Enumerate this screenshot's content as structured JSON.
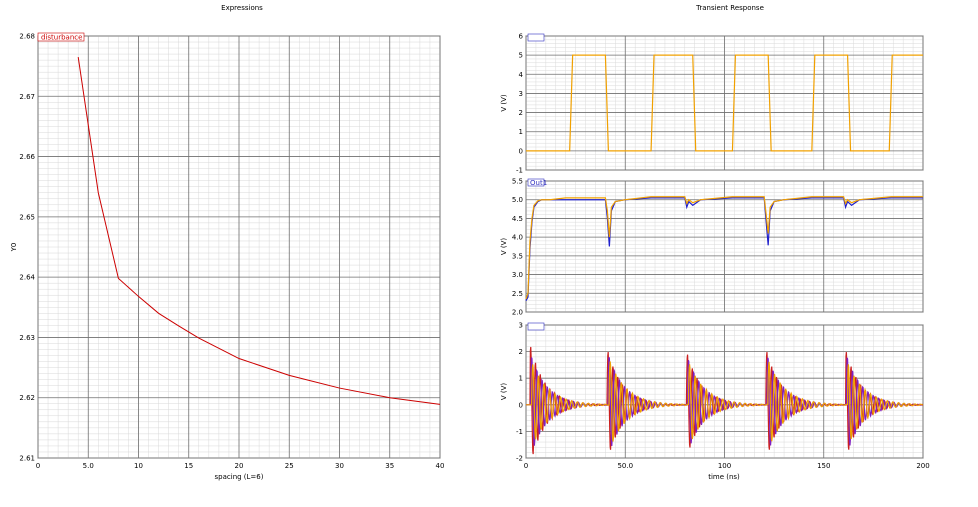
{
  "chart_data": [
    {
      "type": "line",
      "title": "Expressions",
      "xlabel": "spacing (L=6)",
      "ylabel": "Y0",
      "xlim": [
        0,
        40
      ],
      "ylim": [
        2.61,
        2.68
      ],
      "xticks": [
        0,
        5,
        10,
        15,
        20,
        25,
        30,
        35,
        40
      ],
      "xtick_labels": [
        "0",
        "5.0",
        "10",
        "15",
        "20",
        "25",
        "30",
        "35",
        "40"
      ],
      "yticks": [
        2.61,
        2.62,
        2.63,
        2.64,
        2.65,
        2.66,
        2.67,
        2.68
      ],
      "ytick_labels": [
        "2.61",
        "2.62",
        "2.63",
        "2.64",
        "2.65",
        "2.66",
        "2.67",
        "2.68"
      ],
      "grid": true,
      "legend": "top-left",
      "series": [
        {
          "name": "disturbance",
          "color": "#cc0000",
          "x": [
            4,
            6,
            8,
            10,
            12,
            14,
            16,
            20,
            25,
            30,
            35,
            40
          ],
          "y": [
            2.6765,
            2.654,
            2.6398,
            2.6368,
            2.634,
            2.6319,
            2.6299,
            2.6265,
            2.6237,
            2.6216,
            2.62,
            2.6189
          ]
        }
      ]
    },
    {
      "type": "line",
      "title": "Transient Response",
      "panels": [
        {
          "legend_label": "",
          "ylabel": "V (V)",
          "ylim": [
            -1,
            6
          ],
          "yticks": [
            -1,
            0,
            1,
            2,
            3,
            4,
            5,
            6
          ],
          "ytick_labels": [
            "-1",
            "0",
            "1",
            "2",
            "3",
            "4",
            "5",
            "6"
          ],
          "series": [
            {
              "color": "#f0a000",
              "x": [
                0,
                22,
                23.5,
                40,
                41.5,
                63,
                64.5,
                84,
                85.5,
                104,
                105.5,
                122,
                123.5,
                144,
                145.5,
                162,
                163.5,
                183,
                184.5,
                200
              ],
              "y": [
                0,
                0,
                5,
                5,
                0,
                0,
                5,
                5,
                0,
                0,
                5,
                5,
                0,
                0,
                5,
                5,
                0,
                0,
                5,
                5
              ]
            }
          ]
        },
        {
          "legend_label": "Out1",
          "ylabel": "V (V)",
          "ylim": [
            2.0,
            5.5
          ],
          "yticks": [
            2.0,
            2.5,
            3.0,
            3.5,
            4.0,
            4.5,
            5.0,
            5.5
          ],
          "ytick_labels": [
            "2.0",
            "2.5",
            "3.0",
            "3.5",
            "4.0",
            "4.5",
            "5.0",
            "5.5"
          ],
          "series": [
            {
              "color": "#2020cc",
              "x": [
                0,
                1,
                2,
                3,
                4,
                6,
                8,
                12,
                20,
                40,
                41,
                42,
                43,
                45,
                50,
                63,
                80,
                81,
                82,
                84,
                88,
                104,
                120,
                121,
                122,
                123,
                125,
                130,
                144,
                160,
                161,
                162,
                164,
                168,
                184,
                200
              ],
              "y": [
                2.3,
                2.4,
                3.7,
                4.4,
                4.8,
                4.95,
                5.0,
                5.0,
                5.0,
                5.0,
                4.5,
                3.75,
                4.7,
                4.95,
                5.0,
                5.05,
                5.05,
                4.8,
                4.95,
                4.85,
                5.0,
                5.05,
                5.05,
                4.4,
                3.78,
                4.7,
                4.95,
                5.0,
                5.05,
                5.05,
                4.8,
                4.95,
                4.85,
                5.0,
                5.05,
                5.05
              ]
            },
            {
              "color": "#f0a000",
              "x": [
                0,
                1,
                2,
                3,
                4,
                6,
                8,
                12,
                20,
                40,
                41,
                42,
                43,
                45,
                50,
                63,
                80,
                81,
                82,
                84,
                88,
                104,
                120,
                121,
                122,
                123,
                125,
                130,
                144,
                160,
                161,
                162,
                164,
                168,
                184,
                200
              ],
              "y": [
                2.35,
                2.5,
                3.9,
                4.5,
                4.85,
                4.97,
                5.0,
                5.0,
                5.05,
                5.05,
                4.7,
                4.0,
                4.8,
                4.95,
                5.0,
                5.08,
                5.08,
                4.9,
                5.0,
                4.92,
                5.0,
                5.08,
                5.08,
                4.6,
                4.1,
                4.8,
                4.95,
                5.0,
                5.08,
                5.08,
                4.9,
                5.0,
                4.92,
                5.0,
                5.08,
                5.08
              ]
            }
          ]
        },
        {
          "legend_label": "",
          "ylabel": "V (V)",
          "xlabel": "time (ns)",
          "ylim": [
            -2,
            3
          ],
          "yticks": [
            -2,
            -1,
            0,
            1,
            2,
            3
          ],
          "ytick_labels": [
            "-2",
            "-1",
            "0",
            "1",
            "2",
            "3"
          ],
          "xlim": [
            0,
            200
          ],
          "xticks": [
            0,
            50,
            100,
            150,
            200
          ],
          "xtick_labels": [
            "0",
            "50.0",
            "100",
            "150",
            "200"
          ],
          "series": [
            {
              "color": "#cc2020",
              "bursts": [
                2,
                41,
                81,
                121,
                161
              ],
              "amp": [
                2.3,
                2.1,
                2.0,
                2.1,
                2.1
              ],
              "period": 2.4,
              "decay": 7.5
            },
            {
              "color": "#8020c0",
              "bursts": [
                2.5,
                41.5,
                81.5,
                121.5,
                161.5
              ],
              "amp": [
                1.9,
                1.9,
                1.8,
                1.9,
                1.9
              ],
              "period": 2.6,
              "decay": 8
            },
            {
              "color": "#f0a000",
              "bursts": [
                3,
                42,
                82,
                122,
                162
              ],
              "amp": [
                1.6,
                1.7,
                1.6,
                1.7,
                1.6
              ],
              "period": 2.8,
              "decay": 8.5
            }
          ]
        }
      ]
    }
  ]
}
